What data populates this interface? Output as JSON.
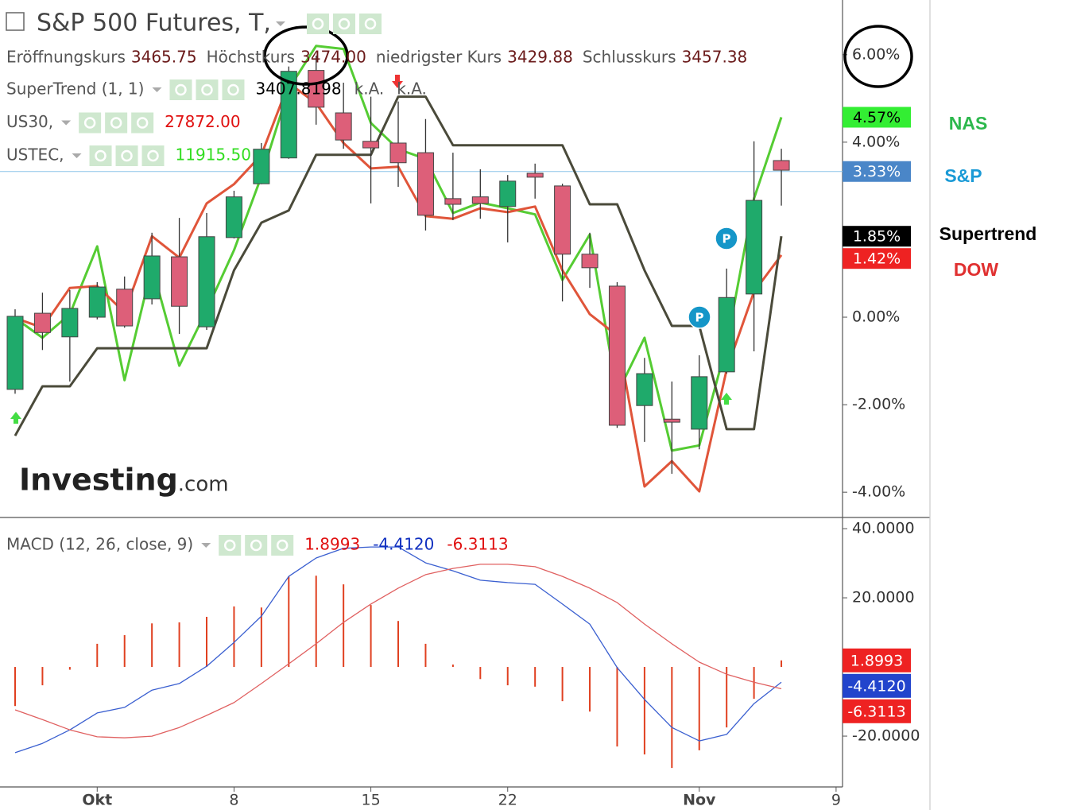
{
  "chart_data": [
    {
      "type": "candlestick",
      "title": "S&P 500 Futures, T,",
      "legend": {
        "ohlc": [
          {
            "label": "Eröffnungskurs",
            "value": "3465.75"
          },
          {
            "label": "Höchstkurs",
            "value": "3474.00"
          },
          {
            "label": "niedrigster Kurs",
            "value": "3429.88"
          },
          {
            "label": "Schlusskurs",
            "value": "3457.38"
          }
        ],
        "indicators": [
          {
            "name": "SuperTrend (1, 1)",
            "values": [
              "3407.8198",
              "k.A.",
              "k.A."
            ],
            "colors": [
              "#000000",
              "#555555",
              "#555555"
            ]
          },
          {
            "name": "US30,",
            "values": [
              "27872.00"
            ],
            "colors": [
              "#e01010"
            ]
          },
          {
            "name": "USTEC,",
            "values": [
              "11915.50"
            ],
            "colors": [
              "#33dd22"
            ]
          }
        ]
      },
      "watermark": [
        "Investing",
        ".com"
      ],
      "categories": [
        null,
        null,
        null,
        "Okt",
        null,
        null,
        null,
        null,
        "8",
        null,
        null,
        null,
        null,
        "15",
        null,
        null,
        null,
        null,
        "22",
        null,
        null,
        null,
        null,
        null,
        null,
        "Nov",
        null,
        null,
        null,
        null,
        "9"
      ],
      "open": [
        -1.65,
        0.09,
        -0.45,
        0,
        0.64,
        0.42,
        1.38,
        -0.22,
        1.82,
        3.05,
        3.64,
        5.64,
        4.67,
        4.02,
        3.98,
        3.76,
        2.71,
        2.75,
        2.53,
        3.29,
        3.0,
        1.44,
        0.71,
        -2.02,
        -2.33,
        -2.56,
        -1.25,
        0.53,
        3.58,
        null,
        null
      ],
      "high": [
        0.18,
        0.56,
        0.62,
        0.8,
        0.93,
        1.93,
        2.27,
        2.38,
        2.89,
        3.98,
        5.73,
        5.98,
        5.36,
        5.04,
        4.93,
        4.53,
        3.76,
        3.38,
        3.25,
        3.51,
        3.05,
        1.93,
        0.8,
        -0.93,
        -1.47,
        -0.87,
        1.11,
        4.02,
        3.85,
        null,
        null
      ],
      "low": [
        -1.75,
        -0.75,
        -1.47,
        -0.05,
        -0.24,
        0.29,
        -0.38,
        -0.29,
        1.8,
        3.04,
        3.62,
        4.4,
        3.85,
        2.6,
        2.98,
        1.98,
        2.22,
        2.25,
        1.71,
        2.71,
        0.36,
        0.67,
        -2.53,
        -2.85,
        -3.58,
        -3.02,
        -1.29,
        -0.78,
        2.55,
        null,
        null
      ],
      "close": [
        0.02,
        -0.35,
        0.2,
        0.69,
        -0.2,
        1.4,
        0.25,
        1.84,
        2.75,
        3.84,
        5.62,
        4.8,
        4.05,
        3.87,
        3.53,
        2.33,
        2.58,
        2.6,
        3.11,
        3.2,
        1.44,
        1.13,
        -2.47,
        -1.29,
        -2.4,
        -1.36,
        0.45,
        2.67,
        3.36,
        null,
        null
      ],
      "up_color": "#1faa6b",
      "down_color": "#dd5f79",
      "series": [
        {
          "name": "NAS",
          "color": "#55cc33",
          "label_color": "#2db84d",
          "values": [
            -0.02,
            -0.47,
            0.07,
            1.62,
            -1.44,
            1.16,
            -1.11,
            0.16,
            1.53,
            3.22,
            5.22,
            6.2,
            6.13,
            4.44,
            3.84,
            3.62,
            2.38,
            2.62,
            2.49,
            2.35,
            0.85,
            1.89,
            -1.75,
            -0.47,
            -3.05,
            -2.93,
            -0.64,
            2.71,
            4.57,
            null,
            null
          ]
        },
        {
          "name": "DOW",
          "color": "#e0553a",
          "label_color": "#e03030",
          "values": [
            -0.02,
            -0.24,
            0.67,
            0.71,
            0.11,
            1.85,
            1.36,
            2.6,
            3.04,
            3.71,
            5.35,
            4.89,
            3.98,
            3.4,
            3.44,
            2.31,
            2.25,
            2.49,
            2.4,
            2.53,
            1.07,
            0.07,
            -0.42,
            -3.87,
            -3.29,
            -3.98,
            -1.2,
            0.58,
            1.42,
            null,
            null
          ]
        },
        {
          "name": "Supertrend",
          "color": "#4a4a3a",
          "label_color": "#000000",
          "values": [
            -2.71,
            -1.58,
            -1.58,
            -0.71,
            -0.71,
            -0.71,
            -0.71,
            -0.71,
            1.07,
            2.16,
            2.44,
            3.71,
            3.71,
            3.71,
            5.04,
            5.04,
            3.93,
            3.93,
            3.93,
            3.93,
            3.93,
            2.58,
            2.58,
            1.07,
            -0.2,
            -0.2,
            -2.56,
            -2.56,
            1.85,
            null,
            null
          ]
        }
      ],
      "annotation": {
        "text": "S&P",
        "color": "#1a9ad6"
      },
      "badges": [
        {
          "value": 4.57,
          "label": "4.57%",
          "color": "#33ee33",
          "text_color": "#000000"
        },
        {
          "value": 3.33,
          "label": "3.33%",
          "color": "#4a86c8",
          "text_color": "#ffffff"
        },
        {
          "value": 1.85,
          "label": "1.85%",
          "color": "#000000",
          "text_color": "#ffffff"
        },
        {
          "value": 1.42,
          "label": "1.42%",
          "color": "#ee2222",
          "text_color": "#ffffff"
        }
      ],
      "ylim": [
        -4.56,
        7.25
      ],
      "yticks": [
        {
          "value": -4,
          "label": "-4.00%"
        },
        {
          "value": -2,
          "label": "-2.00%"
        },
        {
          "value": 0,
          "label": "0.00%"
        },
        {
          "value": 4,
          "label": "4.00%"
        },
        {
          "value": 6,
          "label": "6.00%"
        }
      ]
    },
    {
      "type": "macd",
      "title": "MACD (12, 26, close, 9)",
      "legend_values": [
        "1.8993",
        "-4.4120",
        "-6.3113"
      ],
      "legend_colors": [
        "#e01010",
        "#1030c0",
        "#e01010"
      ],
      "histogram": {
        "color": "#e04020",
        "values": [
          -11.3,
          -5.3,
          -0.8,
          6.7,
          9.2,
          12.6,
          12.9,
          14.5,
          17.5,
          17.2,
          26.2,
          26.4,
          23.9,
          17.9,
          13.3,
          6.7,
          0.7,
          -3.5,
          -5.3,
          -5.7,
          -9.9,
          -12.9,
          -23,
          -25.3,
          -29.2,
          -24.1,
          -17.5,
          -9.2,
          1.8993,
          null,
          null
        ]
      },
      "series": [
        {
          "color": "#3a5fd0",
          "values": [
            -24.8,
            -22.1,
            -18.2,
            -13.3,
            -11.7,
            -6.7,
            -4.8,
            0.2,
            7.1,
            14.7,
            26.2,
            31.5,
            34.3,
            34.7,
            34.7,
            30.1,
            27.8,
            25.1,
            24.4,
            23.9,
            18.2,
            12.4,
            -0.2,
            -9.4,
            -17.5,
            -21.4,
            -19.5,
            -10.6,
            -4.412,
            null,
            null
          ]
        },
        {
          "color": "#e06060",
          "values": [
            -12.4,
            -15.2,
            -18.2,
            -20.2,
            -20.5,
            -20,
            -17.5,
            -14,
            -10.3,
            -4.8,
            0.9,
            6.7,
            12.9,
            18.2,
            22.8,
            26.7,
            28.5,
            29.7,
            29.7,
            29,
            26.2,
            22.8,
            18.6,
            12.4,
            6.7,
            1.4,
            -2.1,
            -4.4,
            -6.3113,
            null,
            null
          ]
        }
      ],
      "badges": [
        {
          "value": 1.8993,
          "label": "1.8993",
          "color": "#ee2222",
          "text_color": "#ffffff"
        },
        {
          "value": -4.412,
          "label": "-4.4120",
          "color": "#2244cc",
          "text_color": "#ffffff"
        },
        {
          "value": -6.3113,
          "label": "-6.3113",
          "color": "#ee2222",
          "text_color": "#ffffff"
        }
      ],
      "ylim": [
        -34.7,
        43
      ],
      "yticks": [
        {
          "value": -20,
          "label": "-20.0000"
        },
        {
          "value": 20,
          "label": "20.0000"
        },
        {
          "value": 40,
          "label": "40.0000"
        }
      ]
    }
  ]
}
